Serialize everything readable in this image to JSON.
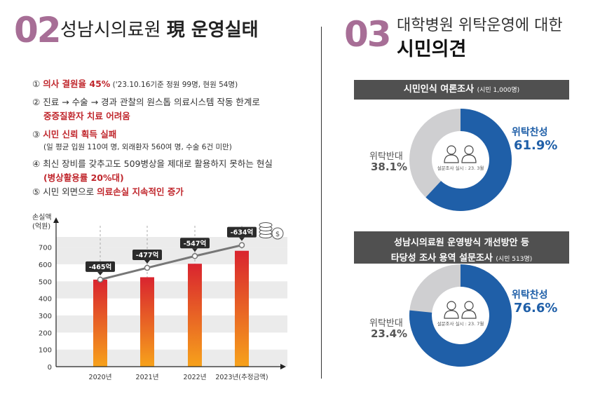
{
  "left": {
    "number": "02",
    "title_plain": "성남시의료원 ",
    "title_bold": "現 운영실태",
    "items": [
      {
        "marker": "①",
        "highlight": "의사 결원율 45%",
        "rest": " ('23.10.16기준 정원 99명, 현원 54명)"
      },
      {
        "marker": "②",
        "text": "진료 → 수술 → 경과 관찰의 원스톱 의료시스템 작동 한계로",
        "sub": "중증질환자 치료 어려움"
      },
      {
        "marker": "③",
        "highlight": "시민 신뢰 획득 실패",
        "sub": "(일 평균 입원 110여 명, 외래환자 560여 명, 수술 6건 미만)"
      },
      {
        "marker": "④",
        "text": "최신 장비를 갖추고도 509병상을 제대로 활용하지 못하는 현실",
        "sub": "(병상활용률 20%대)"
      },
      {
        "marker": "⑤",
        "text": "시민 외면으로 ",
        "highlight": "의료손실 지속적인 증가"
      }
    ]
  },
  "chart_data": {
    "type": "bar",
    "ylabel": "손실액\n(억원)",
    "categories": [
      "2020년",
      "2021년",
      "2022년",
      "2023년(추정금액)"
    ],
    "values": [
      510,
      524,
      603,
      679
    ],
    "line_labels": [
      "-465억",
      "-477억",
      "-547억",
      "-634억"
    ],
    "line_values": [
      510,
      579,
      648,
      712
    ],
    "yticks": [
      0,
      100,
      200,
      300,
      400,
      500,
      600,
      700
    ],
    "ylim": [
      0,
      760
    ],
    "colors": {
      "bar_top": "#d9242f",
      "bar_bottom": "#f7a21b",
      "line": "#777777",
      "label_bg": "#2b2b2b"
    }
  },
  "right": {
    "number": "03",
    "title_line1": "대학병원 위탁운영에 대한",
    "title_line2": "시민의견",
    "survey1": {
      "banner": "시민인식 여론조사",
      "banner_note": "(시민 1,000명)",
      "for_label": "위탁찬성",
      "for_value": "61.9%",
      "against_label": "위탁반대",
      "against_value": "38.1%",
      "center_note": "설문조사 실시 : 23. 3월",
      "for_fraction": 0.619
    },
    "survey2": {
      "banner_line1": "성남시의료원 운영방식 개선방안 등",
      "banner_line2": "타당성 조사 용역 설문조사",
      "banner_note": "(시민 513명)",
      "for_label": "위탁찬성",
      "for_value": "76.6%",
      "against_label": "위탁반대",
      "against_value": "23.4%",
      "center_note": "설문조사 실시 : 23. 7월",
      "for_fraction": 0.766
    },
    "colors": {
      "accent": "#1f5fa8",
      "donut_gray": "#cfcfd1",
      "title_number": "#a76e96"
    }
  }
}
